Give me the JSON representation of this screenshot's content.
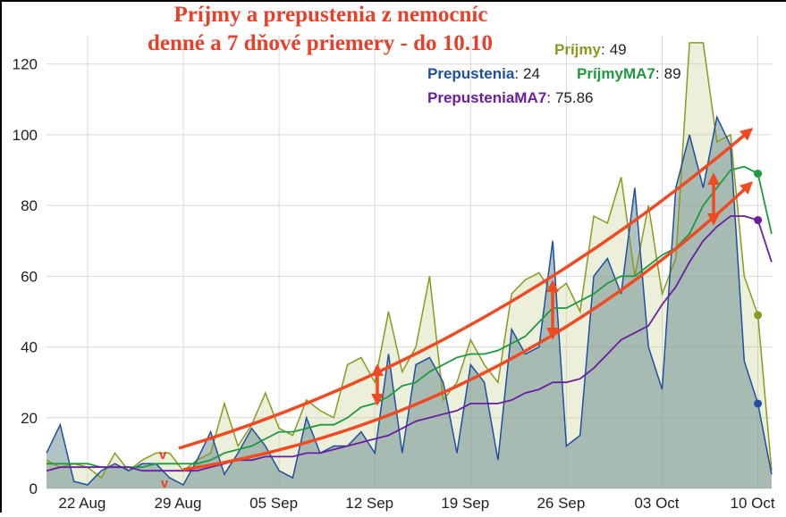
{
  "chart_data": {
    "type": "line",
    "title": "Príjmy a prepustenia z nemocníc",
    "subtitle": "denné a 7 dňové priemery - do 10.10",
    "legend_separator": ":",
    "annotations": [
      "v",
      "v"
    ],
    "categories": [
      null,
      null,
      null,
      "22 Aug",
      null,
      null,
      null,
      null,
      null,
      null,
      "29 Aug",
      null,
      null,
      null,
      null,
      null,
      null,
      "05 Sep",
      null,
      null,
      null,
      null,
      null,
      null,
      "12 Sep",
      null,
      null,
      null,
      null,
      null,
      null,
      "19 Sep",
      null,
      null,
      null,
      null,
      null,
      null,
      "26 Sep",
      null,
      null,
      null,
      null,
      null,
      null,
      "03 Oct",
      null,
      null,
      null,
      null,
      null,
      null,
      "10 Oct",
      null
    ],
    "series": [
      {
        "name": "Príjmy",
        "color": "#8a9a1e",
        "values": [
          8,
          6,
          7,
          6,
          3,
          10,
          5,
          8,
          10,
          10,
          5,
          8,
          10,
          24,
          12,
          18,
          27,
          17,
          15,
          25,
          22,
          20,
          35,
          37,
          30,
          50,
          33,
          40,
          60,
          25,
          30,
          42,
          35,
          30,
          55,
          59,
          61,
          55,
          58,
          50,
          77,
          75,
          88,
          60,
          80,
          55,
          65,
          126,
          126,
          98,
          100,
          60,
          49,
          5
        ]
      },
      {
        "name": "Prepustenia",
        "color": "#1f4fa0",
        "values": [
          10,
          18,
          2,
          1,
          5,
          7,
          5,
          7,
          7,
          3,
          1,
          8,
          16,
          4,
          10,
          17,
          12,
          5,
          3,
          20,
          10,
          12,
          12,
          16,
          10,
          38,
          10,
          35,
          37,
          30,
          10,
          35,
          30,
          8,
          45,
          38,
          40,
          70,
          12,
          15,
          60,
          65,
          55,
          85,
          40,
          28,
          85,
          100,
          85,
          105,
          97,
          36,
          24,
          4
        ]
      },
      {
        "name": "PríjmyMA7",
        "color": "#1e9a3e",
        "values": [
          7,
          7,
          7,
          7,
          6,
          6,
          6,
          6,
          7,
          7,
          7,
          7,
          8,
          10,
          11,
          12,
          14,
          16,
          16,
          17,
          18,
          18,
          20,
          23,
          24,
          26,
          29,
          30,
          33,
          35,
          37,
          38,
          38,
          39,
          41,
          43,
          47,
          51,
          51,
          53,
          55,
          58,
          60,
          60,
          63,
          66,
          68,
          72,
          80,
          85,
          90,
          91,
          89,
          72
        ]
      },
      {
        "name": "PrepusteniaMA7",
        "color": "#6a1fa0",
        "values": [
          5,
          6,
          6,
          6,
          6,
          6,
          6,
          5,
          5,
          5,
          5,
          5,
          6,
          7,
          8,
          8,
          9,
          9,
          9,
          10,
          10,
          11,
          12,
          13,
          14,
          15,
          17,
          19,
          20,
          21,
          22,
          24,
          24,
          24,
          25,
          27,
          28,
          30,
          30,
          31,
          34,
          38,
          42,
          44,
          46,
          52,
          57,
          64,
          70,
          74,
          77,
          77,
          75.86,
          64
        ]
      }
    ],
    "ylim": [
      0,
      128
    ],
    "yticks": [
      0,
      20,
      40,
      60,
      80,
      100,
      120
    ],
    "grid": true
  }
}
